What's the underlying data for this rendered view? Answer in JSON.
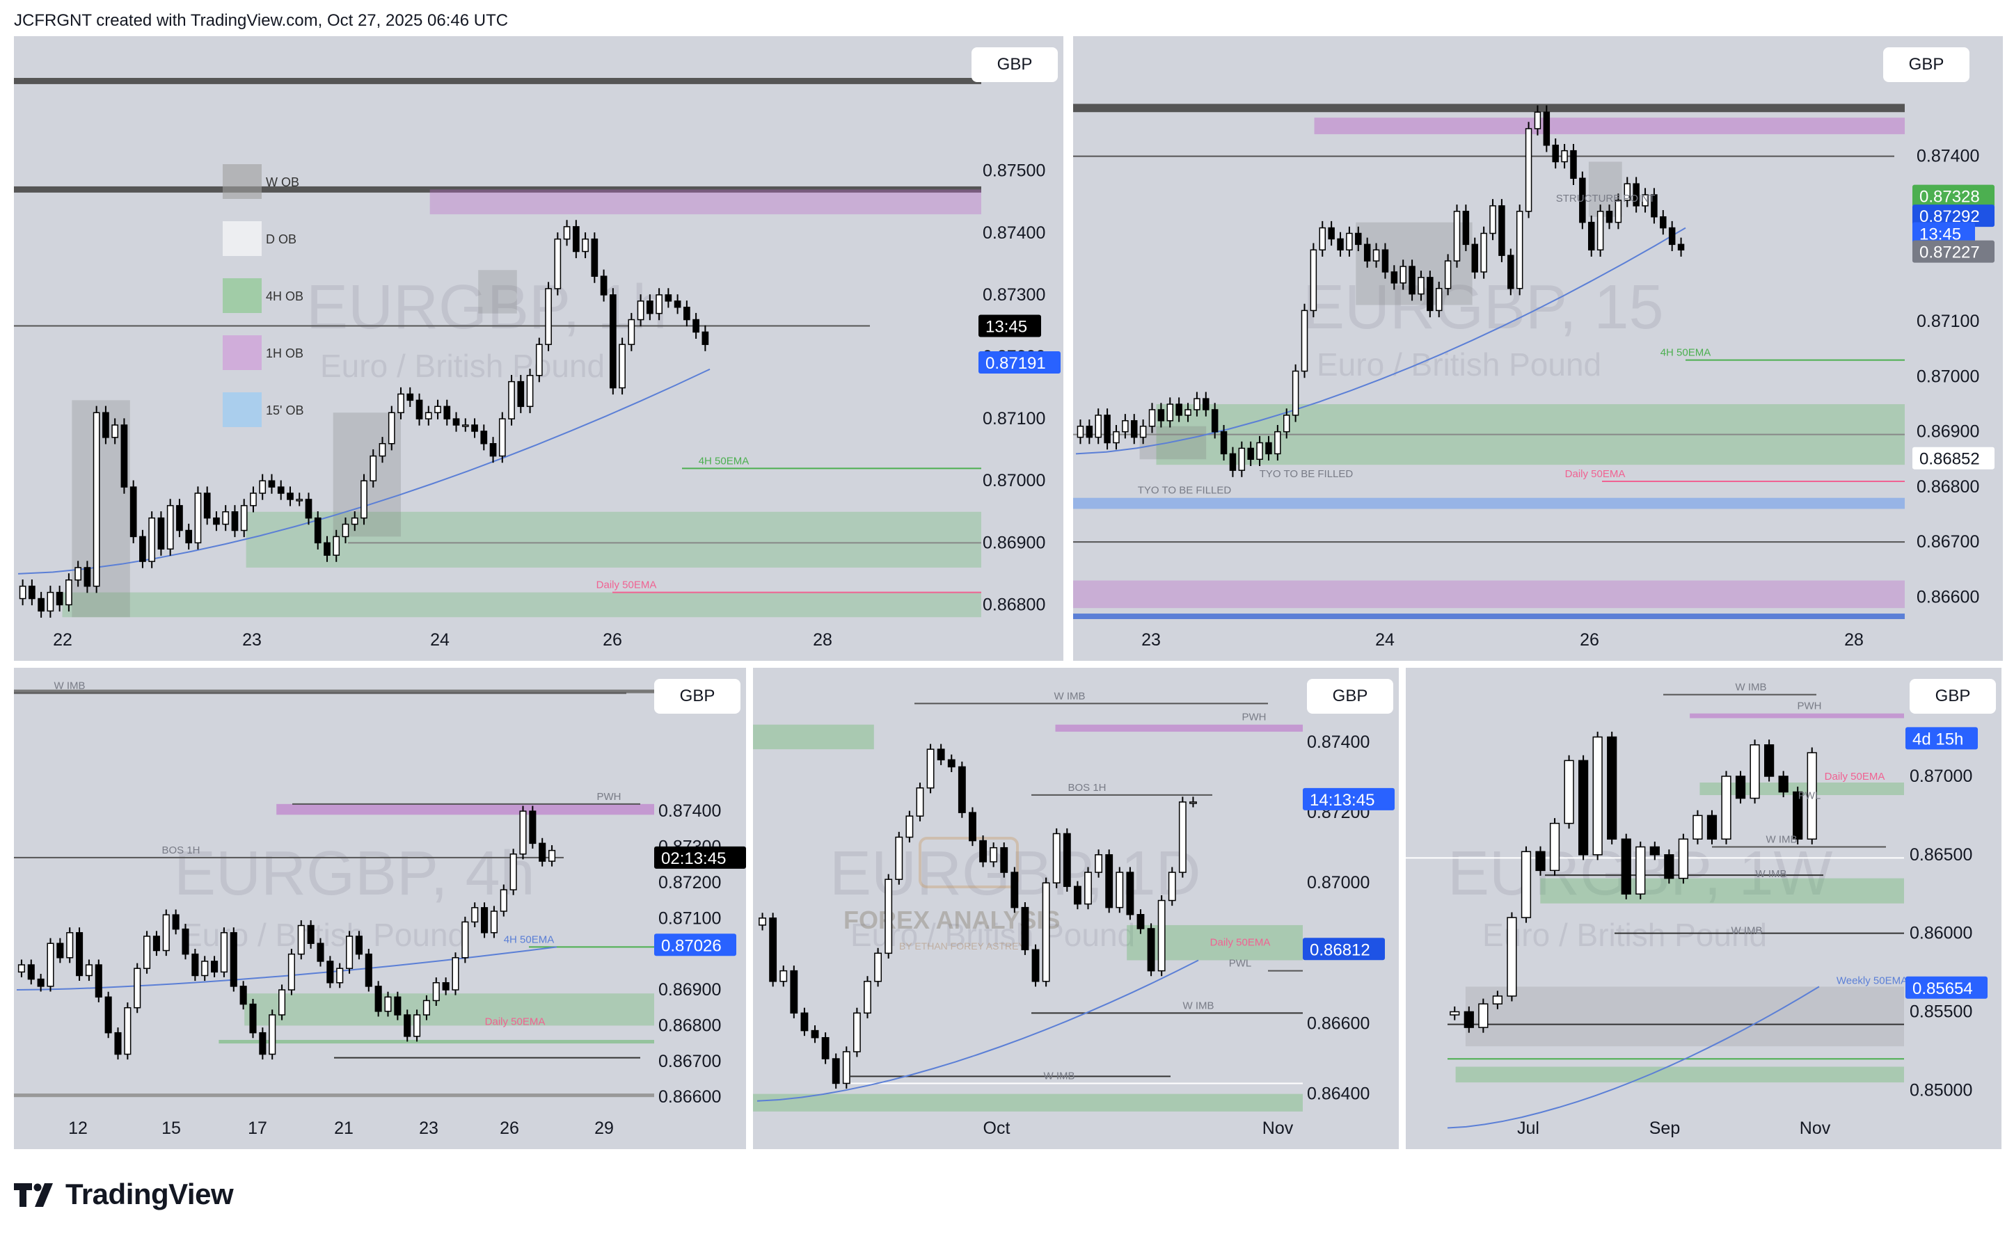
{
  "header": {
    "credit": "JCFRGNT created with TradingView.com, Oct 27, 2025 06:46 UTC"
  },
  "footer": {
    "brand": "TradingView"
  },
  "theme": {
    "bg": "#d1d4dc",
    "up": "#ffffff",
    "down": "#000000",
    "ema": "#5b7fd6",
    "green": "#4caf50",
    "pink": "#f06292",
    "purple": "#ba68c8",
    "blue_label": "#2962ff"
  },
  "chart_data": [
    {
      "type": "candlestick",
      "id": "eurgbp-1h",
      "currency": "GBP",
      "watermark": {
        "symbol": "EURGBP, 1h",
        "name": "Euro / British Pound"
      },
      "ylim": [
        0.8675,
        0.8765
      ],
      "y_ticks": [
        "0.87500",
        "0.87400",
        "0.87300",
        "0.87200",
        "0.87100",
        "0.87000",
        "0.86900",
        "0.86800"
      ],
      "x_ticks": [
        "22",
        "23",
        "24",
        "26",
        "28"
      ],
      "price_labels": [
        {
          "text": "13:45",
          "value": 0.8725,
          "color": "#000000"
        },
        {
          "text": "0.87191",
          "value": 0.87191,
          "color": "#2962ff"
        }
      ],
      "legend": [
        {
          "label": "W OB",
          "color": "#9e9e9e"
        },
        {
          "label": "D OB",
          "color": "#ffffff"
        },
        {
          "label": "4H OB",
          "color": "#81c784"
        },
        {
          "label": "1H OB",
          "color": "#ce93d8"
        },
        {
          "label": "15' OB",
          "color": "#90caf9"
        }
      ],
      "annotations": [
        {
          "text": "4H 50EMA",
          "color": "#4caf50"
        },
        {
          "text": "Daily 50EMA",
          "color": "#f06292"
        }
      ],
      "candles": [
        0.8683,
        0.8681,
        0.8679,
        0.8682,
        0.868,
        0.8684,
        0.8686,
        0.8683,
        0.8711,
        0.8707,
        0.8709,
        0.8699,
        0.8691,
        0.8687,
        0.8694,
        0.8689,
        0.8696,
        0.8692,
        0.869,
        0.8698,
        0.8694,
        0.8693,
        0.8695,
        0.8692,
        0.8696,
        0.8698,
        0.87,
        0.8699,
        0.8698,
        0.8697,
        0.8697,
        0.8694,
        0.869,
        0.8688,
        0.8691,
        0.8693,
        0.8694,
        0.87,
        0.8704,
        0.8706,
        0.8711,
        0.8714,
        0.8713,
        0.871,
        0.8711,
        0.8712,
        0.871,
        0.8709,
        0.8709,
        0.8708,
        0.8706,
        0.8704,
        0.871,
        0.8716,
        0.8712,
        0.8717,
        0.8722,
        0.8731,
        0.8739,
        0.8741,
        0.8737,
        0.8739,
        0.8733,
        0.873,
        0.8715,
        0.8722,
        0.8726,
        0.8729,
        0.8727,
        0.873,
        0.8729,
        0.8728,
        0.8726,
        0.8724,
        0.8722
      ]
    },
    {
      "type": "candlestick",
      "id": "eurgbp-15",
      "currency": "GBP",
      "watermark": {
        "symbol": "EURGBP, 15",
        "name": "Euro / British Pound"
      },
      "ylim": [
        0.8656,
        0.8758
      ],
      "y_ticks": [
        "0.87400",
        "0.87100",
        "0.87000",
        "0.86900",
        "0.86800",
        "0.86700",
        "0.86600"
      ],
      "x_ticks": [
        "23",
        "24",
        "26",
        "28"
      ],
      "price_labels": [
        {
          "text": "0.87328",
          "value": 0.87328,
          "color": "#4caf50"
        },
        {
          "text": "0.87292",
          "value": 0.87292,
          "color": "#1e53e5"
        },
        {
          "text": "13:45",
          "value": 0.8726,
          "color": "#2962ff"
        },
        {
          "text": "0.87227",
          "value": 0.87227,
          "color": "#787b86"
        },
        {
          "text": "0.86852",
          "value": 0.86852,
          "color": "#ffffff"
        }
      ],
      "annotations": [
        {
          "text": "STRUCTURE POINT",
          "color": "#787b86"
        },
        {
          "text": "TYO TO BE  FILLED",
          "color": "#787b86"
        },
        {
          "text": "TYO TO BE  FILLED",
          "color": "#787b86"
        },
        {
          "text": "4H 50EMA",
          "color": "#4caf50"
        },
        {
          "text": "Daily 50EMA",
          "color": "#f06292"
        }
      ],
      "candles": [
        0.8691,
        0.8689,
        0.8693,
        0.8688,
        0.869,
        0.8692,
        0.8689,
        0.8691,
        0.8694,
        0.8692,
        0.8695,
        0.8693,
        0.8694,
        0.8696,
        0.8694,
        0.869,
        0.8686,
        0.8683,
        0.8687,
        0.8685,
        0.8688,
        0.8686,
        0.869,
        0.8693,
        0.8701,
        0.8712,
        0.8723,
        0.8727,
        0.8725,
        0.8723,
        0.8726,
        0.8724,
        0.8721,
        0.8723,
        0.8719,
        0.8717,
        0.872,
        0.8715,
        0.8718,
        0.8712,
        0.8716,
        0.8721,
        0.873,
        0.8724,
        0.8719,
        0.8726,
        0.8731,
        0.8722,
        0.8716,
        0.873,
        0.8745,
        0.8748,
        0.8742,
        0.8739,
        0.8741,
        0.8736,
        0.8728,
        0.8723,
        0.873,
        0.8728,
        0.8732,
        0.8735,
        0.8731,
        0.8733,
        0.8729,
        0.8727,
        0.8724,
        0.8723
      ]
    },
    {
      "type": "candlestick",
      "id": "eurgbp-4h",
      "currency": "GBP",
      "watermark": {
        "symbol": "EURGBP, 4h",
        "name": "Euro / British Pound"
      },
      "ylim": [
        0.8654,
        0.8777
      ],
      "y_ticks": [
        "0.87400",
        "0.87300",
        "0.87200",
        "0.87100",
        "0.86900",
        "0.86800",
        "0.86700",
        "0.86600"
      ],
      "x_ticks": [
        "12",
        "15",
        "17",
        "21",
        "23",
        "26",
        "29"
      ],
      "price_labels": [
        {
          "text": "02:13:45",
          "value": 0.8727,
          "color": "#000000"
        },
        {
          "text": "0.87026",
          "value": 0.87026,
          "color": "#2962ff"
        }
      ],
      "annotations": [
        {
          "text": "W IMB",
          "color": "#787b86"
        },
        {
          "text": "PWH",
          "color": "#787b86"
        },
        {
          "text": "BOS 1H",
          "color": "#787b86"
        },
        {
          "text": "4H 50EMA",
          "color": "#5b7fd6"
        },
        {
          "text": "Daily 50EMA",
          "color": "#f06292"
        }
      ],
      "candles": [
        0.8697,
        0.8693,
        0.8691,
        0.8703,
        0.8699,
        0.8706,
        0.8694,
        0.8697,
        0.8688,
        0.8678,
        0.8672,
        0.8685,
        0.8696,
        0.8705,
        0.8701,
        0.8711,
        0.8707,
        0.87,
        0.8694,
        0.8698,
        0.8695,
        0.8706,
        0.8691,
        0.8686,
        0.8678,
        0.8672,
        0.8683,
        0.869,
        0.87,
        0.8708,
        0.8703,
        0.8698,
        0.8692,
        0.8696,
        0.8705,
        0.87,
        0.8691,
        0.8684,
        0.8688,
        0.8683,
        0.8677,
        0.8683,
        0.8687,
        0.8692,
        0.869,
        0.8699,
        0.8709,
        0.8713,
        0.8706,
        0.8712,
        0.8718,
        0.8728,
        0.874,
        0.8731,
        0.8726,
        0.8729
      ]
    },
    {
      "type": "candlestick",
      "id": "eurgbp-1d",
      "currency": "GBP",
      "watermark": {
        "symbol": "EURGBP, 1D",
        "name": "Euro / British Pound"
      },
      "ylim": [
        0.8633,
        0.8758
      ],
      "y_ticks": [
        "0.87400",
        "0.87200",
        "0.87000",
        "0.86800",
        "0.86600",
        "0.86400"
      ],
      "x_ticks": [
        "Oct",
        "Nov"
      ],
      "price_labels": [
        {
          "text": "14:13:45",
          "value": 0.87238,
          "color": "#2962ff"
        },
        {
          "text": "0.86812",
          "value": 0.86812,
          "color": "#1e53e5"
        }
      ],
      "logo": {
        "title": "FOREX ANALYSIS",
        "subtitle": "BY ETHAN FOREY ASTREY"
      },
      "annotations": [
        {
          "text": "W IMB",
          "color": "#787b86"
        },
        {
          "text": "PWH",
          "color": "#787b86"
        },
        {
          "text": "BOS 1H",
          "color": "#787b86"
        },
        {
          "text": "Daily 50EMA",
          "color": "#f06292"
        },
        {
          "text": "PWL",
          "color": "#787b86"
        },
        {
          "text": "W IMB",
          "color": "#787b86"
        },
        {
          "text": "W IMB",
          "color": "#787b86"
        }
      ],
      "candles": [
        0.869,
        0.8672,
        0.8675,
        0.8663,
        0.8658,
        0.8656,
        0.865,
        0.8643,
        0.8652,
        0.8663,
        0.8672,
        0.868,
        0.8701,
        0.8713,
        0.8719,
        0.8727,
        0.8738,
        0.8735,
        0.8733,
        0.872,
        0.8712,
        0.8706,
        0.871,
        0.8703,
        0.8693,
        0.8681,
        0.8672,
        0.87,
        0.8714,
        0.8699,
        0.8694,
        0.8703,
        0.8708,
        0.8693,
        0.8703,
        0.8691,
        0.8687,
        0.8675,
        0.8695,
        0.8703,
        0.8723,
        0.8723
      ]
    },
    {
      "type": "candlestick",
      "id": "eurgbp-1w",
      "currency": "GBP",
      "watermark": {
        "symbol": "EURGBP, 1W",
        "name": "Euro / British Pound"
      },
      "ylim": [
        0.8482,
        0.8762
      ],
      "y_ticks": [
        "0.87500",
        "0.87000",
        "0.86500",
        "0.86000",
        "0.85500",
        "0.85000"
      ],
      "x_ticks": [
        "Jul",
        "Sep",
        "Nov"
      ],
      "price_labels": [
        {
          "text": "4d 15h",
          "value": 0.87242,
          "color": "#2962ff"
        },
        {
          "text": "0.85654",
          "value": 0.85654,
          "color": "#2962ff"
        }
      ],
      "annotations": [
        {
          "text": "W IMB",
          "color": "#787b86"
        },
        {
          "text": "PWH",
          "color": "#787b86"
        },
        {
          "text": "Daily 50EMA",
          "color": "#f06292"
        },
        {
          "text": "PWL",
          "color": "#787b86"
        },
        {
          "text": "W IMB",
          "color": "#787b86"
        },
        {
          "text": "W IMB",
          "color": "#787b86"
        },
        {
          "text": "W IMB",
          "color": "#787b86"
        },
        {
          "text": "Weekly 50EMA",
          "color": "#5b7fd6"
        }
      ],
      "candles": [
        0.855,
        0.854,
        0.8555,
        0.856,
        0.861,
        0.8652,
        0.864,
        0.867,
        0.871,
        0.865,
        0.8725,
        0.866,
        0.8625,
        0.8655,
        0.865,
        0.8635,
        0.866,
        0.8675,
        0.866,
        0.87,
        0.8686,
        0.872,
        0.87,
        0.869,
        0.866,
        0.8715
      ]
    }
  ]
}
